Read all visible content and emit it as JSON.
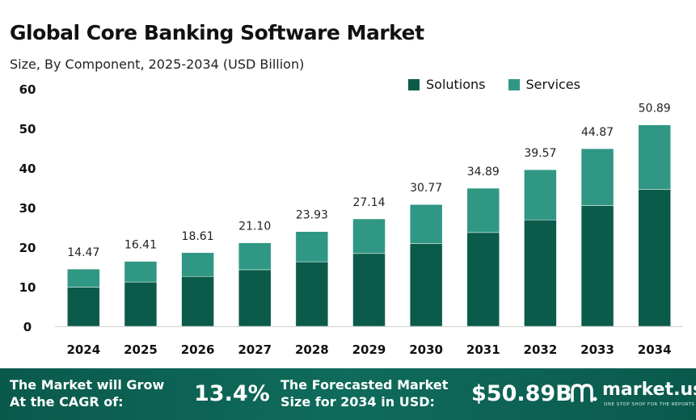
{
  "title": "Global Core Banking Software Market",
  "subtitle": "Size, By Component, 2025-2034 (USD Billion)",
  "colors": {
    "solutions": "#0b5b4b",
    "services": "#2f9783",
    "footer_bg": "#0a5a4c"
  },
  "chart_data": {
    "type": "bar",
    "stacked": true,
    "title": "Global Core Banking Software Market",
    "subtitle": "Size, By Component, 2025-2034 (USD Billion)",
    "categories": [
      "2024",
      "2025",
      "2026",
      "2027",
      "2028",
      "2029",
      "2030",
      "2031",
      "2032",
      "2033",
      "2034"
    ],
    "series": [
      {
        "name": "Solutions",
        "values": [
          9.9,
          11.2,
          12.6,
          14.3,
          16.3,
          18.4,
          20.9,
          23.7,
          26.9,
          30.5,
          34.6
        ]
      },
      {
        "name": "Services",
        "values": [
          4.57,
          5.21,
          6.01,
          6.8,
          7.63,
          8.74,
          9.87,
          11.19,
          12.67,
          14.37,
          16.29
        ]
      }
    ],
    "totals": [
      "14.47",
      "16.41",
      "18.61",
      "21.10",
      "23.93",
      "27.14",
      "30.77",
      "34.89",
      "39.57",
      "44.87",
      "50.89"
    ],
    "ylim": [
      0,
      60
    ],
    "yticks": [
      "0",
      "10",
      "20",
      "30",
      "40",
      "50",
      "60"
    ],
    "legend": "top-right",
    "grid": false
  },
  "footer": {
    "grow_line1": "The Market will Grow",
    "grow_line2": "At the CAGR of:",
    "cagr": "13.4%",
    "forecast_line1": "The Forecasted Market",
    "forecast_line2": "Size for 2034 in USD:",
    "forecast_value": "$50.89B",
    "logo_text": "market.us",
    "logo_tagline": "ONE STOP SHOP FOR THE REPORTS",
    "logo_icon": "market-us-logo-icon"
  }
}
